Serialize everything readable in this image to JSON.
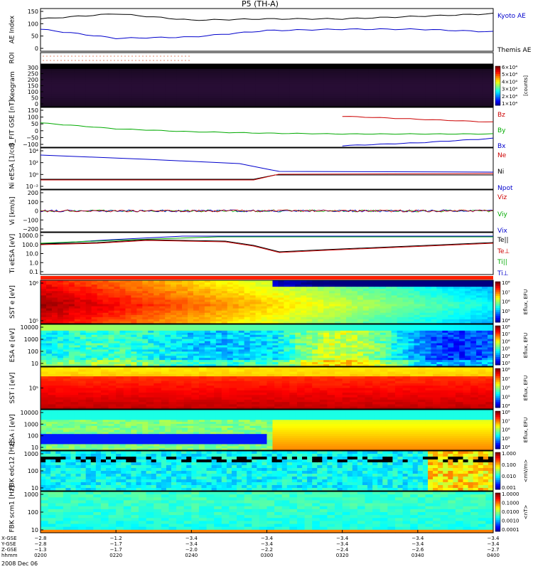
{
  "title": "P5 (TH-A)",
  "panels": [
    {
      "id": "ae",
      "label": "AE Index",
      "yticks": [
        "150",
        "100",
        "50",
        "0"
      ],
      "legend": [
        {
          "text": "Kyoto AE",
          "color": "#0000cc"
        },
        {
          "text": "Themis AE",
          "color": "#000000"
        }
      ]
    },
    {
      "id": "roi",
      "label": "ROI",
      "yticks": [],
      "legend": []
    },
    {
      "id": "kgram",
      "label": "Keogram",
      "yticks": [
        "300",
        "250",
        "200",
        "150",
        "100",
        "50",
        "0"
      ],
      "legend": [],
      "cbar": [
        "6×10⁴",
        "5×10⁴",
        "4×10⁴",
        "3×10⁴",
        "2×10⁴",
        "1×10⁴"
      ],
      "cbar_unit": "[counts]"
    },
    {
      "id": "bfit",
      "label": "B_FIT GSE [nT]",
      "yticks": [
        "150",
        "100",
        "50",
        "0",
        "−50",
        "−100"
      ],
      "legend": [
        {
          "text": "Bz",
          "color": "#cc0000"
        },
        {
          "text": "By",
          "color": "#00aa00"
        },
        {
          "text": "Bx",
          "color": "#0000cc"
        }
      ]
    },
    {
      "id": "ni",
      "label": "Ni eESA [1/cc]",
      "yticks": [
        "10⁴",
        "10²",
        "10⁰",
        "10⁻²"
      ],
      "legend": [
        {
          "text": "Ne",
          "color": "#cc0000"
        },
        {
          "text": "Ni",
          "color": "#000000"
        },
        {
          "text": "Npot",
          "color": "#0000cc"
        }
      ]
    },
    {
      "id": "vi",
      "label": "Vi [km/s]",
      "yticks": [
        "200",
        "100",
        "0",
        "−100",
        "−200"
      ],
      "legend": [
        {
          "text": "Viz",
          "color": "#cc0000"
        },
        {
          "text": "Viy",
          "color": "#00aa00"
        },
        {
          "text": "Vix",
          "color": "#0000cc"
        }
      ]
    },
    {
      "id": "ti",
      "label": "Ti eESA [eV]",
      "yticks": [
        "1000.0",
        "100.0",
        "10.0",
        "1.0",
        "0.1"
      ],
      "legend": [
        {
          "text": "Te||",
          "color": "#000000"
        },
        {
          "text": "Te⊥",
          "color": "#cc0000"
        },
        {
          "text": "Ti||",
          "color": "#00aa00"
        },
        {
          "text": "Ti⊥",
          "color": "#0000cc"
        }
      ]
    },
    {
      "id": "esst",
      "label": "SST e [eV]",
      "yticks": [
        "10⁶",
        "10⁵"
      ],
      "legend": [],
      "cbar": [
        "10⁸",
        "10⁷",
        "10⁶",
        "10⁵",
        "10⁴"
      ],
      "cbar_unit": "Eflux, EFU"
    },
    {
      "id": "eesa",
      "label": "ESA e [eV]",
      "yticks": [
        "10000",
        "1000",
        "100",
        "10"
      ],
      "legend": [],
      "cbar": [
        "10⁸",
        "10⁷",
        "10⁶",
        "10⁵",
        "10⁴",
        "10³"
      ],
      "cbar_unit": "Eflux, EFU"
    },
    {
      "id": "isst",
      "label": "SST i [eV]",
      "yticks": [
        "10⁵"
      ],
      "legend": [],
      "cbar": [
        "10⁸",
        "10⁷",
        "10⁶",
        "10⁵",
        "10⁴"
      ],
      "cbar_unit": "Eflux, EFU"
    },
    {
      "id": "iesa",
      "label": "ESA i [eV]",
      "yticks": [
        "10000",
        "1000",
        "100",
        "10"
      ],
      "legend": [],
      "cbar": [
        "10⁸",
        "10⁷",
        "10⁶",
        "10⁵",
        "10⁴"
      ],
      "cbar_unit": "Eflux, EFU"
    },
    {
      "id": "fbke",
      "label": "FBK edc12 [Hz]",
      "yticks": [
        "1000",
        "100",
        "10"
      ],
      "legend": [],
      "cbar": [
        "1.000",
        "0.100",
        "0.010",
        "0.001"
      ],
      "cbar_unit": "<mV/m>"
    },
    {
      "id": "fbkb",
      "label": "FBK scm1 [Hz]",
      "yticks": [
        "1000",
        "100",
        "10"
      ],
      "legend": [],
      "cbar": [
        "1.0000",
        "0.1000",
        "0.0100",
        "0.0010",
        "0.0001"
      ],
      "cbar_unit": "<nT>"
    }
  ],
  "xaxis": {
    "rows": [
      {
        "label": "X-GSE",
        "values": [
          "−2.8",
          "−1.2",
          "−3.4",
          "−3.4",
          "−3.4",
          "−3.4",
          "−3.4"
        ]
      },
      {
        "label": "Y-GSE",
        "values": [
          "−2.8",
          "−1.7",
          "−3.4",
          "−3.4",
          "−3.4",
          "−3.4",
          "−3.4"
        ]
      },
      {
        "label": "Z-GSE",
        "values": [
          "−1.3",
          "−1.7",
          "−2.0",
          "−2.2",
          "−2.4",
          "−2.6",
          "−2.7"
        ]
      },
      {
        "label": "hhmm",
        "values": [
          "0200",
          "0220",
          "0240",
          "0300",
          "0320",
          "0340",
          "0400"
        ]
      }
    ],
    "date": "2008 Dec 06"
  },
  "chart_data": {
    "type": "line",
    "title": "P5 (TH-A)",
    "x": [
      "0200",
      "0220",
      "0240",
      "0300",
      "0320",
      "0340",
      "0400"
    ],
    "series": [
      {
        "name": "Kyoto AE",
        "values": [
          80,
          45,
          50,
          75,
          80,
          80,
          70
        ]
      },
      {
        "name": "Themis AE",
        "values": [
          120,
          140,
          115,
          120,
          120,
          130,
          140
        ]
      },
      {
        "name": "Bz",
        "values": [
          null,
          null,
          null,
          null,
          100,
          80,
          60
        ]
      },
      {
        "name": "By",
        "values": [
          55,
          15,
          -5,
          -15,
          -20,
          -20,
          -20
        ]
      },
      {
        "name": "Bx",
        "values": [
          null,
          null,
          null,
          null,
          -100,
          -80,
          -50
        ]
      }
    ],
    "xlabel": "hhmm",
    "ylabel": "AE Index"
  }
}
